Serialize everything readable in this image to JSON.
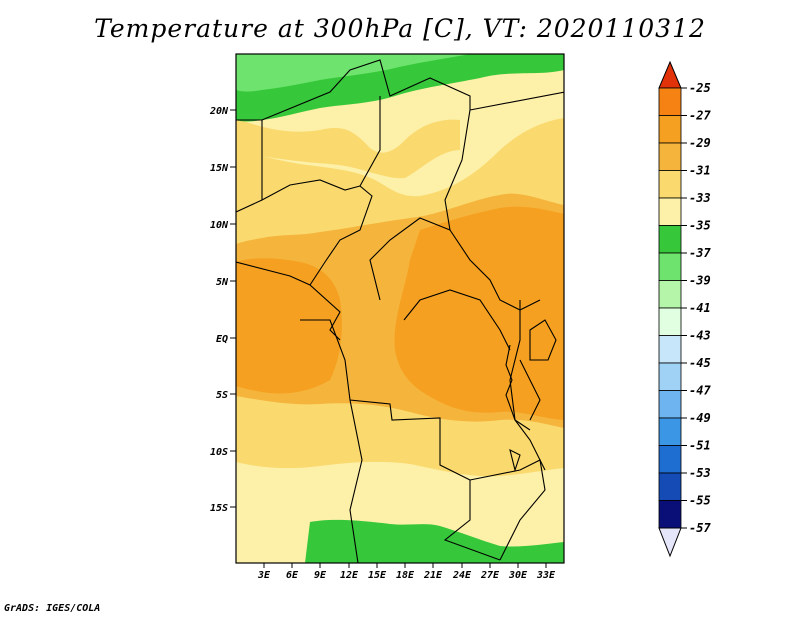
{
  "title": "Temperature at 300hPa [C], VT: 2020110312",
  "footer": "GrADS: IGES/COLA",
  "map": {
    "y_ticks": [
      "20N",
      "15N",
      "10N",
      "5N",
      "EQ",
      "5S",
      "10S",
      "15S"
    ],
    "x_ticks": [
      "3E",
      "6E",
      "9E",
      "12E",
      "15E",
      "18E",
      "21E",
      "24E",
      "27E",
      "30E",
      "33E"
    ]
  },
  "colorbar": {
    "labels": [
      "-25",
      "-27",
      "-29",
      "-31",
      "-33",
      "-35",
      "-37",
      "-39",
      "-41",
      "-43",
      "-45",
      "-47",
      "-49",
      "-51",
      "-53",
      "-55",
      "-57"
    ],
    "colors": [
      "#f0501e",
      "#f78214",
      "#f5a020",
      "#f5b43c",
      "#fad96e",
      "#fdf0a8",
      "#36c83a",
      "#6ee46e",
      "#b4f5aa",
      "#e1ffe1",
      "#c8e6fa",
      "#9fd2f5",
      "#6eb4f0",
      "#3c96e6",
      "#1e6ed2",
      "#144bb4",
      "#0a0f78"
    ],
    "top_arrow_color": "#e1320a",
    "bottom_arrow_color": "#e6e6fa"
  }
}
